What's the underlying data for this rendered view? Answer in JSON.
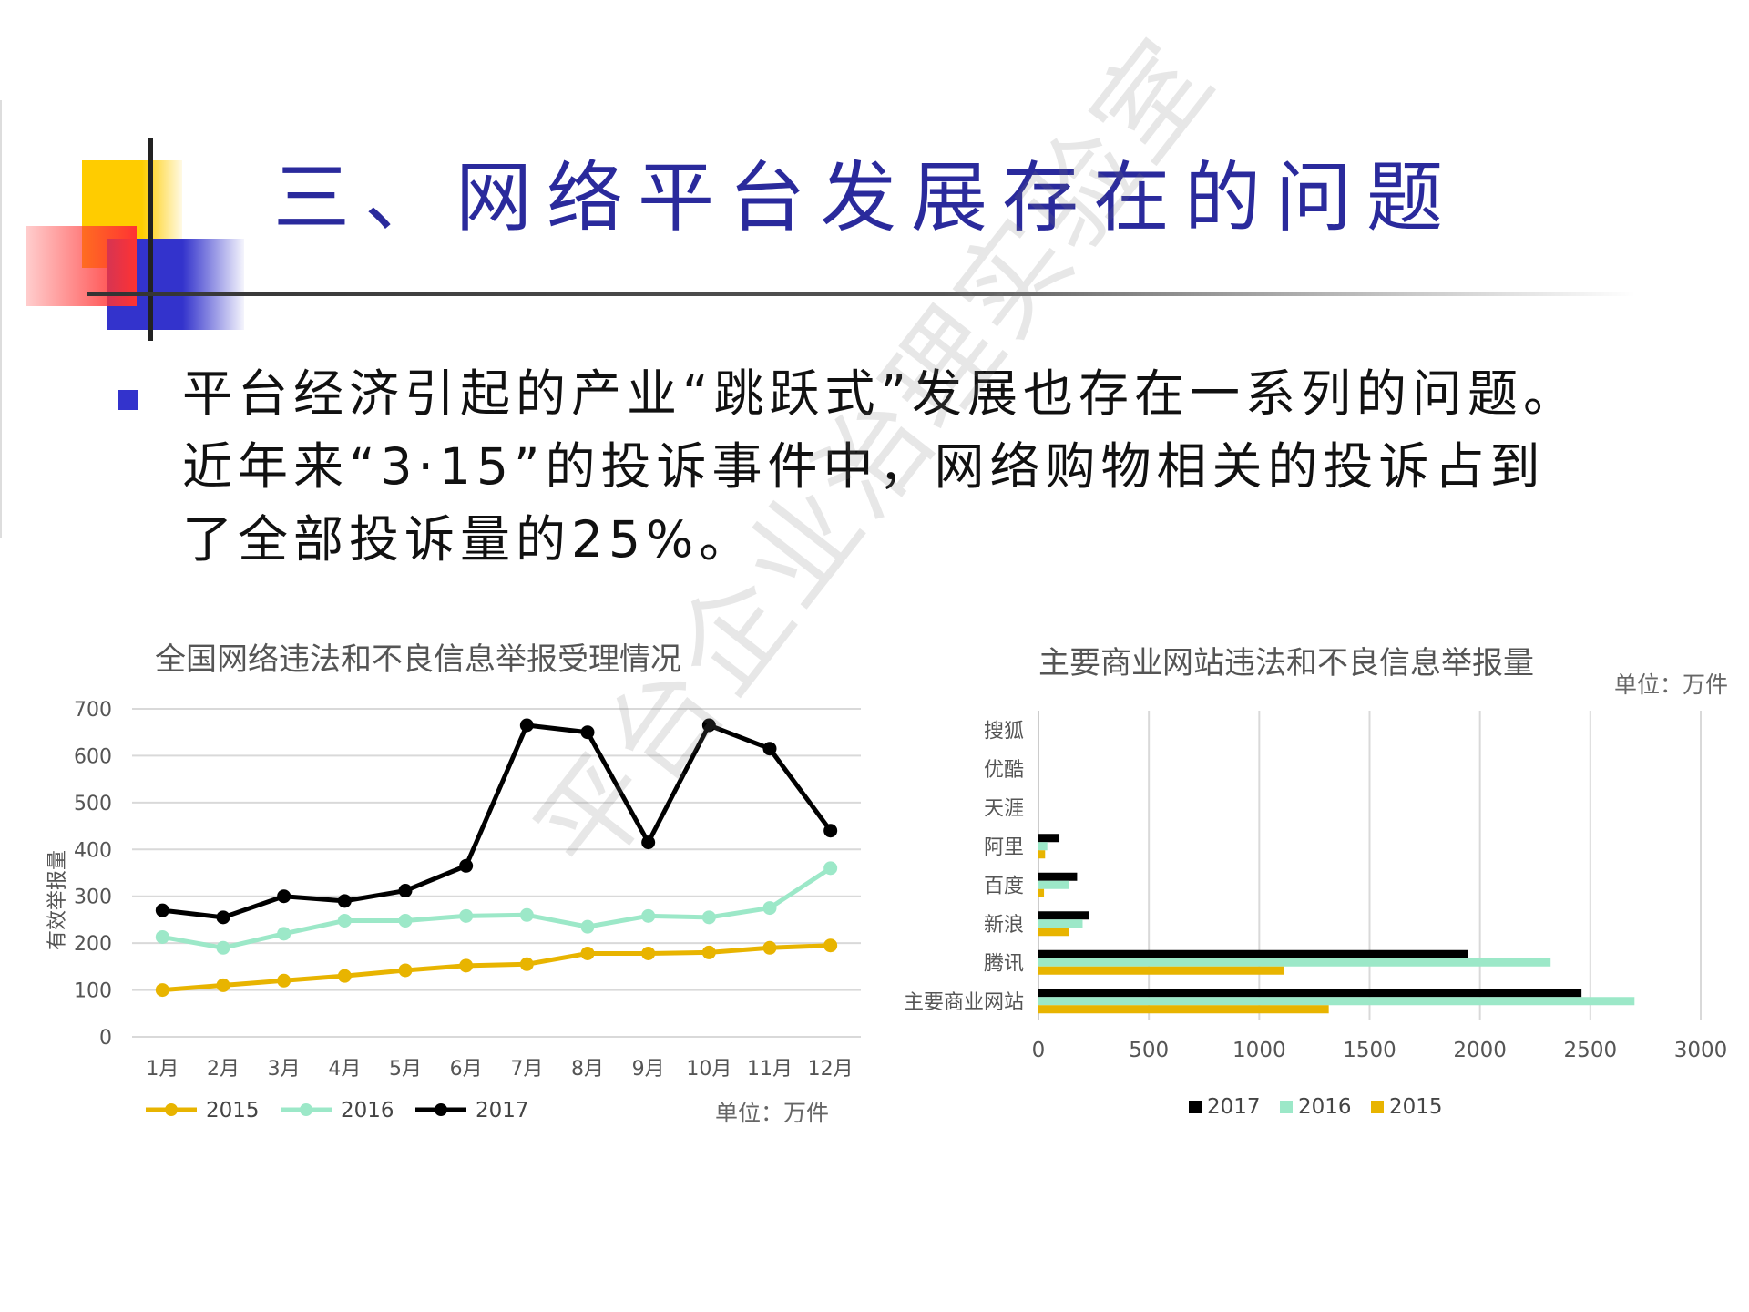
{
  "slide": {
    "title": "三、网络平台发展存在的问题",
    "body_lines": [
      "平台经济引起的产业“跳跃式”发展也存在一系列的问题。",
      "近年来“3·15”的投诉事件中，网络购物相关的投诉占到",
      "了全部投诉量的25%。"
    ],
    "watermark": "平台企业治理实验室"
  },
  "colors": {
    "title": "#2a2a9c",
    "bullet": "#3333cc",
    "s2015": "#E8B400",
    "s2016": "#9CE8C8",
    "s2017": "#000000"
  },
  "chart_data": [
    {
      "type": "line",
      "title": "全国网络违法和不良信息举报受理情况",
      "ylabel": "有效举报量",
      "unit": "单位：万件",
      "x": [
        "1月",
        "2月",
        "3月",
        "4月",
        "5月",
        "6月",
        "7月",
        "8月",
        "9月",
        "10月",
        "11月",
        "12月"
      ],
      "ylim": [
        0,
        700
      ],
      "yticks": [
        "0",
        "100",
        "200",
        "300",
        "400",
        "500",
        "600",
        "700"
      ],
      "grid": true,
      "legend": "bottom",
      "series": [
        {
          "name": "2015",
          "color": "#E8B400",
          "values": [
            100,
            110,
            120,
            130,
            142,
            152,
            155,
            178,
            178,
            180,
            190,
            195
          ]
        },
        {
          "name": "2016",
          "color": "#9CE8C8",
          "values": [
            213,
            190,
            220,
            248,
            248,
            258,
            260,
            235,
            258,
            255,
            275,
            360
          ]
        },
        {
          "name": "2017",
          "color": "#000000",
          "values": [
            270,
            255,
            300,
            290,
            312,
            365,
            665,
            650,
            415,
            665,
            615,
            440
          ]
        }
      ]
    },
    {
      "type": "bar",
      "orientation": "horizontal",
      "title": "主要商业网站违法和不良信息举报量",
      "unit": "单位：万件",
      "categories": [
        "搜狐",
        "优酷",
        "天涯",
        "阿里",
        "百度",
        "新浪",
        "腾讯",
        "主要商业网站"
      ],
      "xlim": [
        0,
        3000
      ],
      "xticks": [
        "0",
        "500",
        "1000",
        "1500",
        "2000",
        "2500",
        "3000"
      ],
      "grid": true,
      "legend": "bottom",
      "series": [
        {
          "name": "2017",
          "color": "#000000",
          "values": [
            0,
            0,
            0,
            95,
            175,
            230,
            1945,
            2460
          ]
        },
        {
          "name": "2016",
          "color": "#9CE8C8",
          "values": [
            0,
            0,
            0,
            40,
            140,
            200,
            2320,
            2700
          ]
        },
        {
          "name": "2015",
          "color": "#E8B400",
          "values": [
            0,
            0,
            0,
            30,
            25,
            140,
            1110,
            1315
          ]
        }
      ]
    }
  ]
}
